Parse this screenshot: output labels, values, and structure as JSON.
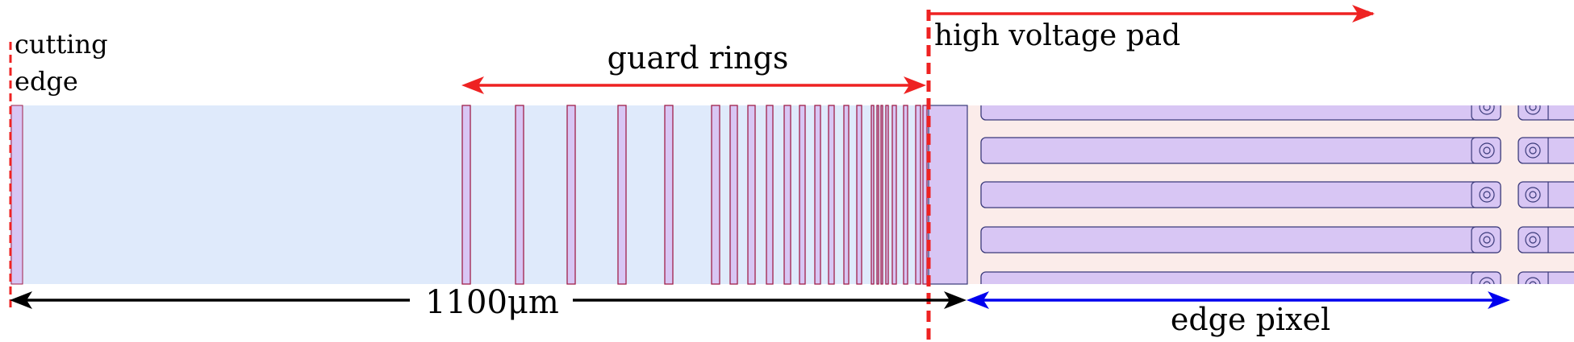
{
  "labels": {
    "cutting_edge_line1": "cutting",
    "cutting_edge_line2": "edge",
    "guard_rings": "guard rings",
    "high_voltage_pad": "high voltage pad",
    "distance": "1100μm",
    "edge_pixel": "edge pixel"
  },
  "colors": {
    "arrow_red": "#ee2222",
    "arrow_black": "#000000",
    "arrow_blue": "#0000ee",
    "guard_region_fill": "#dfeafb",
    "pixel_region_fill": "#fbecea",
    "metal_fill": "#d8c6f4",
    "ring_line": "#a0204a",
    "outline": "#3a3a7a"
  }
}
